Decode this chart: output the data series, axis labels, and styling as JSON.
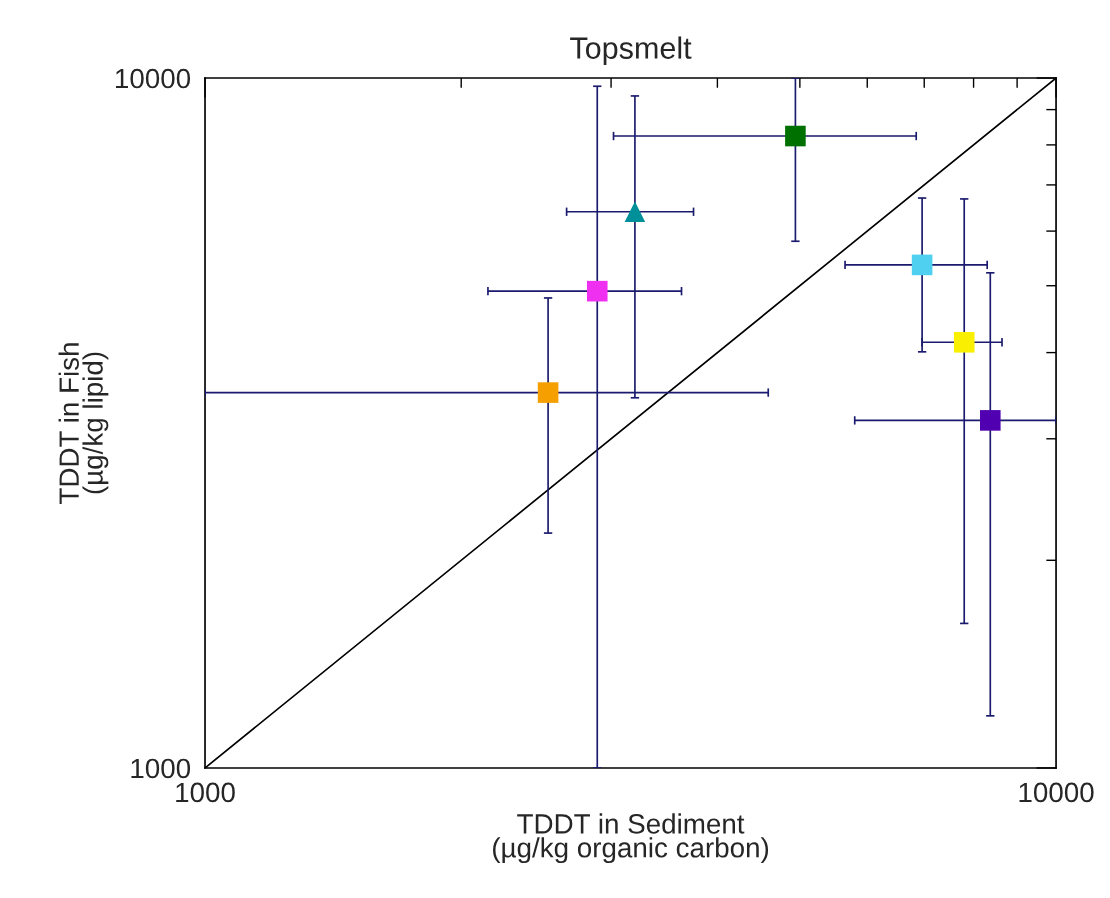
{
  "chart_data": {
    "type": "scatter",
    "title": "Topsmelt",
    "xlabel": "TDDT in Sediment\n(µg/kg organic carbon)",
    "ylabel": "TDDT in Fish\n(µg/kg lipid)",
    "log": "xy",
    "xlim": [
      1000,
      10000
    ],
    "ylim": [
      1000,
      10000
    ],
    "xticks": [
      1000,
      10000
    ],
    "yticks": [
      1000,
      10000
    ],
    "grid": false,
    "legend": false,
    "series": [
      {
        "type": "line",
        "color": "#000000",
        "marker": "none",
        "line_style": "solid",
        "x": [
          1000,
          10000
        ],
        "values": [
          1000,
          10000
        ]
      },
      {
        "color": "#f5a000",
        "marker": "square",
        "x": [
          2530
        ],
        "values": [
          3500
        ],
        "xerrors": [
          [
            1000,
            4590
          ]
        ],
        "errors": [
          [
            2190,
            4800
          ]
        ]
      },
      {
        "color": "#f030f0",
        "marker": "square",
        "x": [
          2890
        ],
        "values": [
          4910
        ],
        "xerrors": [
          [
            2150,
            3630
          ]
        ],
        "errors": [
          [
            1000,
            9730
          ]
        ]
      },
      {
        "color": "#00909a",
        "marker": "triangle",
        "x": [
          3200
        ],
        "values": [
          6400
        ],
        "xerrors": [
          [
            2660,
            3750
          ]
        ],
        "errors": [
          [
            3440,
            9420
          ]
        ]
      },
      {
        "color": "#007000",
        "marker": "square",
        "x": [
          4940
        ],
        "values": [
          8240
        ],
        "xerrors": [
          [
            3020,
            6850
          ]
        ],
        "errors": [
          [
            5800,
            10000
          ]
        ]
      },
      {
        "color": "#50d0f0",
        "marker": "square",
        "x": [
          6960
        ],
        "values": [
          5360
        ],
        "xerrors": [
          [
            5650,
            8300
          ]
        ],
        "errors": [
          [
            4010,
            6700
          ]
        ]
      },
      {
        "color": "#f8f000",
        "marker": "square",
        "x": [
          7800
        ],
        "values": [
          4140
        ],
        "xerrors": [
          [
            6960,
            8640
          ]
        ],
        "errors": [
          [
            1620,
            6680
          ]
        ]
      },
      {
        "color": "#5000b0",
        "marker": "square",
        "x": [
          8370
        ],
        "values": [
          3190
        ],
        "xerrors": [
          [
            5800,
            10000
          ]
        ],
        "errors": [
          [
            1190,
            5220
          ]
        ]
      }
    ]
  }
}
